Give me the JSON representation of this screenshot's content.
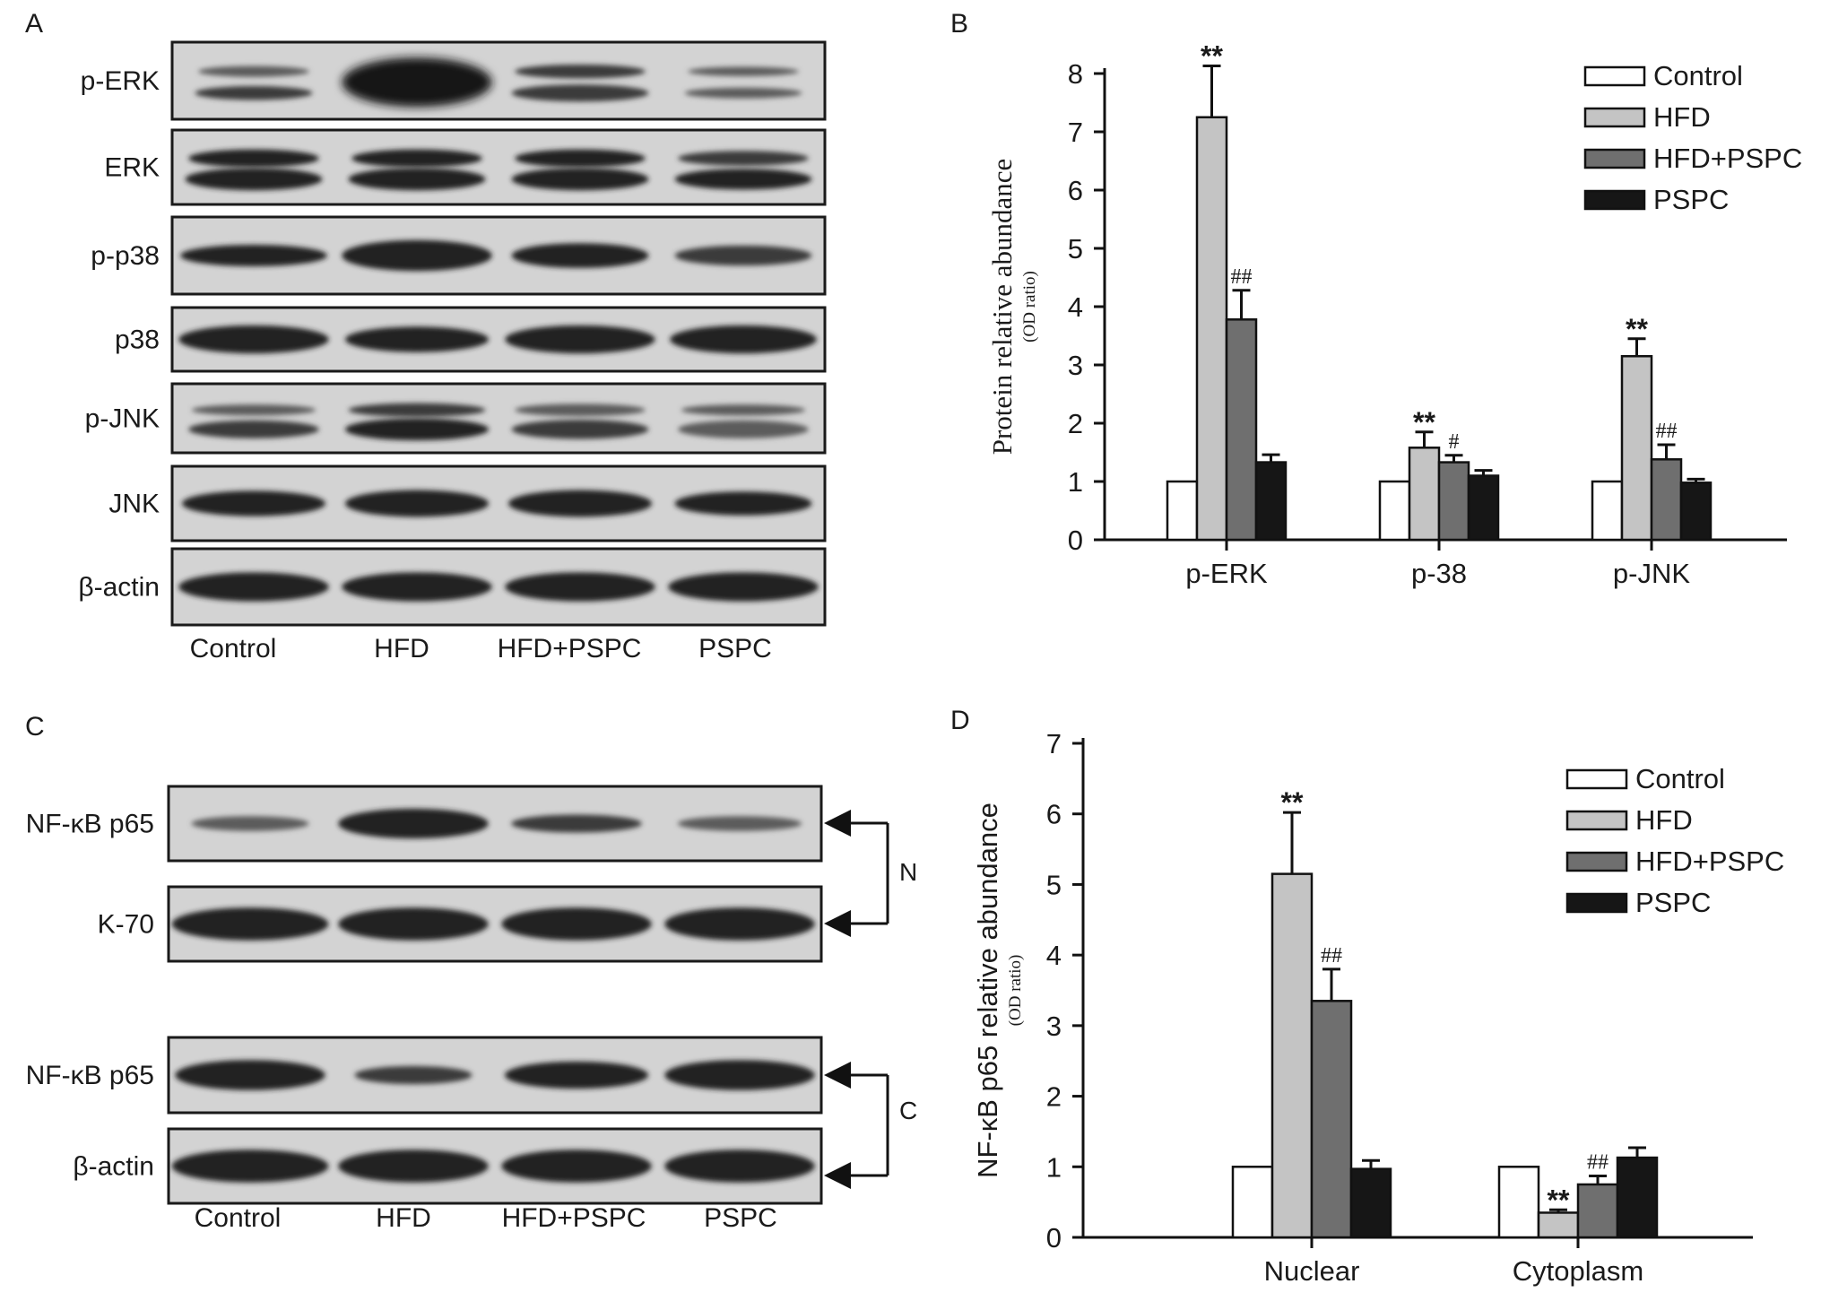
{
  "panel_letters": {
    "a": "A",
    "b": "B",
    "c": "C",
    "d": "D"
  },
  "blot_a": {
    "rows": [
      "p-ERK",
      "ERK",
      "p-p38",
      "p38",
      "p-JNK",
      "JNK",
      "β-actin"
    ],
    "lanes": [
      "Control",
      "HFD",
      "HFD+PSPC",
      "PSPC"
    ]
  },
  "blot_c": {
    "rows": [
      "NF-κB p65",
      "K-70",
      "NF-κB p65",
      "β-actin"
    ],
    "lanes": [
      "Control",
      "HFD",
      "HFD+PSPC",
      "PSPC"
    ],
    "bracket_nuclear": "N",
    "bracket_cytoplasm": "C"
  },
  "colors": {
    "control": "#ffffff",
    "hfd": "#c4c4c4",
    "hfd_pspc": "#6f6f6f",
    "pspc": "#161616"
  },
  "chart_data": [
    {
      "type": "bar",
      "panel": "B",
      "ylabel": "Protein relative abundance",
      "ylabel_sub": "(OD ratio)",
      "ylim": [
        0,
        8
      ],
      "yticks": [
        "0",
        "1",
        "2",
        "3",
        "4",
        "5",
        "6",
        "7",
        "8"
      ],
      "categories": [
        "p-ERK",
        "p-38",
        "p-JNK"
      ],
      "legend_position": "top-right",
      "series": [
        {
          "name": "Control",
          "values": [
            1.0,
            1.0,
            1.0
          ],
          "errors": [
            0,
            0,
            0
          ],
          "marks": [
            "",
            "",
            ""
          ]
        },
        {
          "name": "HFD",
          "values": [
            7.25,
            1.58,
            3.15
          ],
          "errors": [
            0.88,
            0.27,
            0.3
          ],
          "marks": [
            "**",
            "**",
            "**"
          ]
        },
        {
          "name": "HFD+PSPC",
          "values": [
            3.78,
            1.33,
            1.38
          ],
          "errors": [
            0.5,
            0.12,
            0.25
          ],
          "marks": [
            "##",
            "#",
            "##"
          ]
        },
        {
          "name": "PSPC",
          "values": [
            1.33,
            1.1,
            0.98
          ],
          "errors": [
            0.13,
            0.09,
            0.06
          ],
          "marks": [
            "",
            "",
            ""
          ]
        }
      ]
    },
    {
      "type": "bar",
      "panel": "D",
      "ylabel": "NF-κB p65 relative abundance",
      "ylabel_sub": "(OD ratio)",
      "ylim": [
        0,
        7
      ],
      "yticks": [
        "0",
        "1",
        "2",
        "3",
        "4",
        "5",
        "6",
        "7"
      ],
      "categories": [
        "Nuclear",
        "Cytoplasm"
      ],
      "legend_position": "top-right",
      "series": [
        {
          "name": "Control",
          "values": [
            1.0,
            1.0
          ],
          "errors": [
            0,
            0
          ],
          "marks": [
            "",
            ""
          ]
        },
        {
          "name": "HFD",
          "values": [
            5.15,
            0.35
          ],
          "errors": [
            0.87,
            0.04
          ],
          "marks": [
            "**",
            "**"
          ]
        },
        {
          "name": "HFD+PSPC",
          "values": [
            3.35,
            0.75
          ],
          "errors": [
            0.45,
            0.12
          ],
          "marks": [
            "##",
            "##"
          ]
        },
        {
          "name": "PSPC",
          "values": [
            0.97,
            1.13
          ],
          "errors": [
            0.12,
            0.14
          ],
          "marks": [
            "",
            ""
          ]
        }
      ]
    }
  ]
}
